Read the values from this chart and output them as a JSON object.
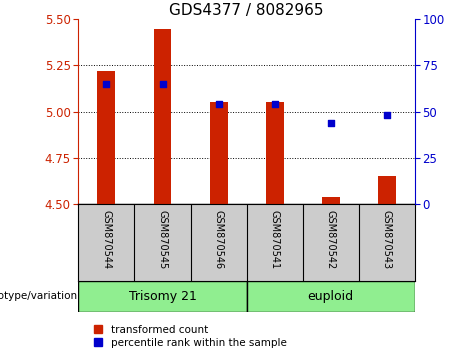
{
  "title": "GDS4377 / 8082965",
  "samples": [
    "GSM870544",
    "GSM870545",
    "GSM870546",
    "GSM870541",
    "GSM870542",
    "GSM870543"
  ],
  "red_values": [
    5.22,
    5.45,
    5.05,
    5.05,
    4.535,
    4.65
  ],
  "blue_values": [
    65,
    65,
    54,
    54,
    44,
    48
  ],
  "ylim_left": [
    4.5,
    5.5
  ],
  "ylim_right": [
    0,
    100
  ],
  "yticks_left": [
    4.5,
    4.75,
    5.0,
    5.25,
    5.5
  ],
  "yticks_right": [
    0,
    25,
    50,
    75,
    100
  ],
  "bar_baseline": 4.5,
  "bar_color": "#cc2200",
  "dot_color": "#0000cc",
  "trisomy_color": "#90ee90",
  "euploid_color": "#90ee90",
  "xtick_bg": "#cccccc",
  "trisomy_label": "Trisomy 21",
  "euploid_label": "euploid",
  "genotype_label": "genotype/variation",
  "legend_red": "transformed count",
  "legend_blue": "percentile rank within the sample",
  "title_fontsize": 11,
  "tick_fontsize": 8.5,
  "sample_fontsize": 7,
  "group_fontsize": 9,
  "legend_fontsize": 7.5,
  "bar_width": 0.32,
  "dot_size": 22
}
